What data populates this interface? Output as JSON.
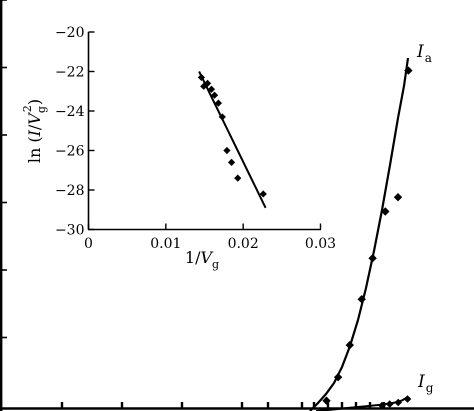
{
  "chart_data": [
    {
      "panel": "main",
      "type": "scatter",
      "title": "",
      "xlabel": "",
      "ylabel": "",
      "series": [
        {
          "name": "I_a",
          "label": {
            "main": "I",
            "sub": "a"
          },
          "points": [
            [
              326.5,
              400.7
            ],
            [
              338.1,
              377.2
            ],
            [
              349.8,
              345.1
            ],
            [
              361.7,
              299.2
            ],
            [
              372.6,
              258.2
            ],
            [
              385.3,
              211.5
            ],
            [
              398.0,
              197.2
            ],
            [
              408.4,
              70.6
            ]
          ],
          "fit": [
            [
              310,
              411
            ],
            [
              318,
              403
            ],
            [
              326,
              394
            ],
            [
              334,
              383
            ],
            [
              342,
              367
            ],
            [
              350,
              346
            ],
            [
              358,
              320
            ],
            [
              366,
              288
            ],
            [
              374,
              251
            ],
            [
              382,
              210
            ],
            [
              390,
              165
            ],
            [
              398,
              118
            ],
            [
              404,
              86
            ],
            [
              408,
              58
            ]
          ]
        },
        {
          "name": "I_g",
          "label": {
            "main": "I",
            "sub": "g"
          },
          "points": [
            [
              382.0,
              405.5
            ],
            [
              389.7,
              404.1
            ],
            [
              398.2,
              402.5
            ],
            [
              407.5,
              399.0
            ]
          ],
          "fit": [
            [
              316,
              411
            ],
            [
              332,
              409.6
            ],
            [
              350,
              407.8
            ],
            [
              366,
              406.3
            ],
            [
              382,
              404.6
            ],
            [
              394,
              402.8
            ],
            [
              402,
              400.4
            ],
            [
              408,
              397.0
            ]
          ]
        }
      ]
    },
    {
      "panel": "inset",
      "type": "scatter",
      "title": "",
      "xlabel": {
        "pre": "1/",
        "main": "V",
        "sub": "g"
      },
      "ylabel": {
        "pre": "ln (",
        "main": "I",
        "mid": "/",
        "v": "V",
        "sub": "g",
        "sup": "2",
        "post": ")"
      },
      "xlim": [
        0,
        0.03
      ],
      "ylim": [
        -30,
        -20
      ],
      "x_ticks": [
        "0",
        "0.01",
        "0.02",
        "0.03"
      ],
      "y_ticks": [
        "−20",
        "−22",
        "−24",
        "−26",
        "−28",
        "−30"
      ],
      "points": [
        [
          0.0146,
          -22.3
        ],
        [
          0.0149,
          -22.75
        ],
        [
          0.0154,
          -22.6
        ],
        [
          0.0159,
          -22.9
        ],
        [
          0.0163,
          -23.2
        ],
        [
          0.0168,
          -23.6
        ],
        [
          0.0173,
          -24.3
        ],
        [
          0.0179,
          -26.0
        ],
        [
          0.0185,
          -26.6
        ],
        [
          0.0193,
          -27.4
        ],
        [
          0.0226,
          -28.2
        ]
      ],
      "fit": [
        [
          0.0143,
          -22.0
        ],
        [
          0.0229,
          -28.9
        ]
      ]
    }
  ]
}
